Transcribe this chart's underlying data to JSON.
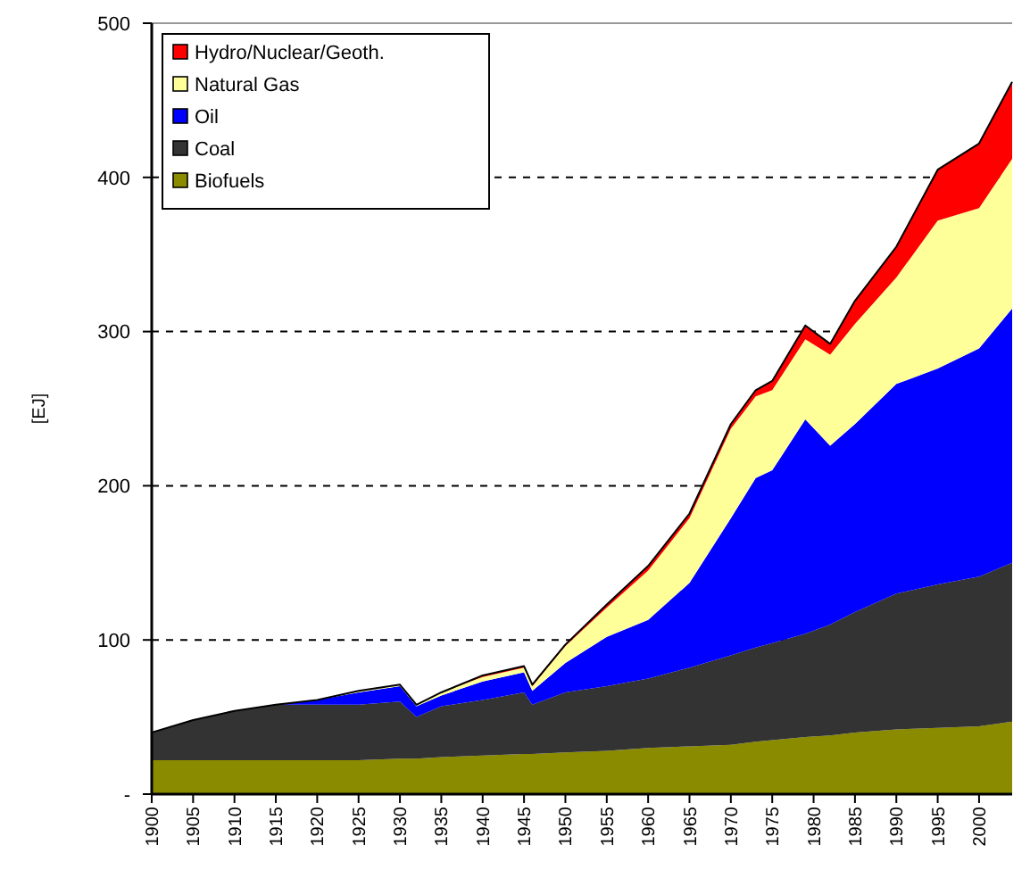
{
  "chart_data": {
    "type": "area",
    "stacked": true,
    "ylabel": "[EJ]",
    "x": [
      1900,
      1905,
      1910,
      1915,
      1920,
      1925,
      1930,
      1932,
      1935,
      1940,
      1945,
      1946,
      1950,
      1955,
      1960,
      1965,
      1970,
      1973,
      1975,
      1979,
      1982,
      1985,
      1990,
      1995,
      2000,
      2004
    ],
    "series": [
      {
        "name": "Biofuels",
        "color": "#8b8b00",
        "values": [
          22,
          22,
          22,
          22,
          22,
          22,
          23,
          23,
          24,
          25,
          26,
          26,
          27,
          28,
          30,
          31,
          32,
          34,
          35,
          37,
          38,
          40,
          42,
          43,
          44,
          47
        ]
      },
      {
        "name": "Coal",
        "color": "#333333",
        "values": [
          18,
          26,
          32,
          36,
          36,
          36,
          37,
          27,
          33,
          36,
          40,
          32,
          39,
          42,
          45,
          51,
          58,
          61,
          63,
          67,
          72,
          78,
          88,
          93,
          97,
          103
        ]
      },
      {
        "name": "Oil",
        "color": "#0000ff",
        "values": [
          0,
          0,
          0,
          0,
          3,
          8,
          10,
          7,
          7,
          12,
          13,
          9,
          19,
          32,
          38,
          55,
          89,
          110,
          112,
          139,
          116,
          122,
          136,
          140,
          148,
          165
        ]
      },
      {
        "name": "Natural Gas",
        "color": "#ffff99",
        "values": [
          0,
          0,
          0,
          0,
          0,
          1,
          1,
          1,
          2,
          3,
          3,
          3,
          11,
          19,
          32,
          42,
          58,
          53,
          52,
          52,
          59,
          65,
          69,
          96,
          91,
          97
        ]
      },
      {
        "name": "Hydro/Nuclear/Geoth.",
        "color": "#ff0000",
        "values": [
          0,
          0,
          0,
          0,
          0,
          0,
          0,
          0,
          0,
          1,
          1,
          1,
          1,
          2,
          3,
          3,
          3,
          4,
          6,
          9,
          7,
          15,
          20,
          33,
          42,
          50
        ]
      }
    ],
    "xlim": [
      1900,
      2004
    ],
    "xticks": [
      1900,
      1905,
      1910,
      1915,
      1920,
      1925,
      1930,
      1935,
      1940,
      1945,
      1950,
      1955,
      1960,
      1965,
      1970,
      1975,
      1980,
      1985,
      1990,
      1995,
      2000
    ],
    "ylim": [
      0,
      500
    ],
    "yticks": [
      {
        "value": 0,
        "label": "-"
      },
      100,
      200,
      300,
      400,
      500
    ],
    "grid": "y",
    "line_style": "dashed",
    "legend": "top left"
  }
}
